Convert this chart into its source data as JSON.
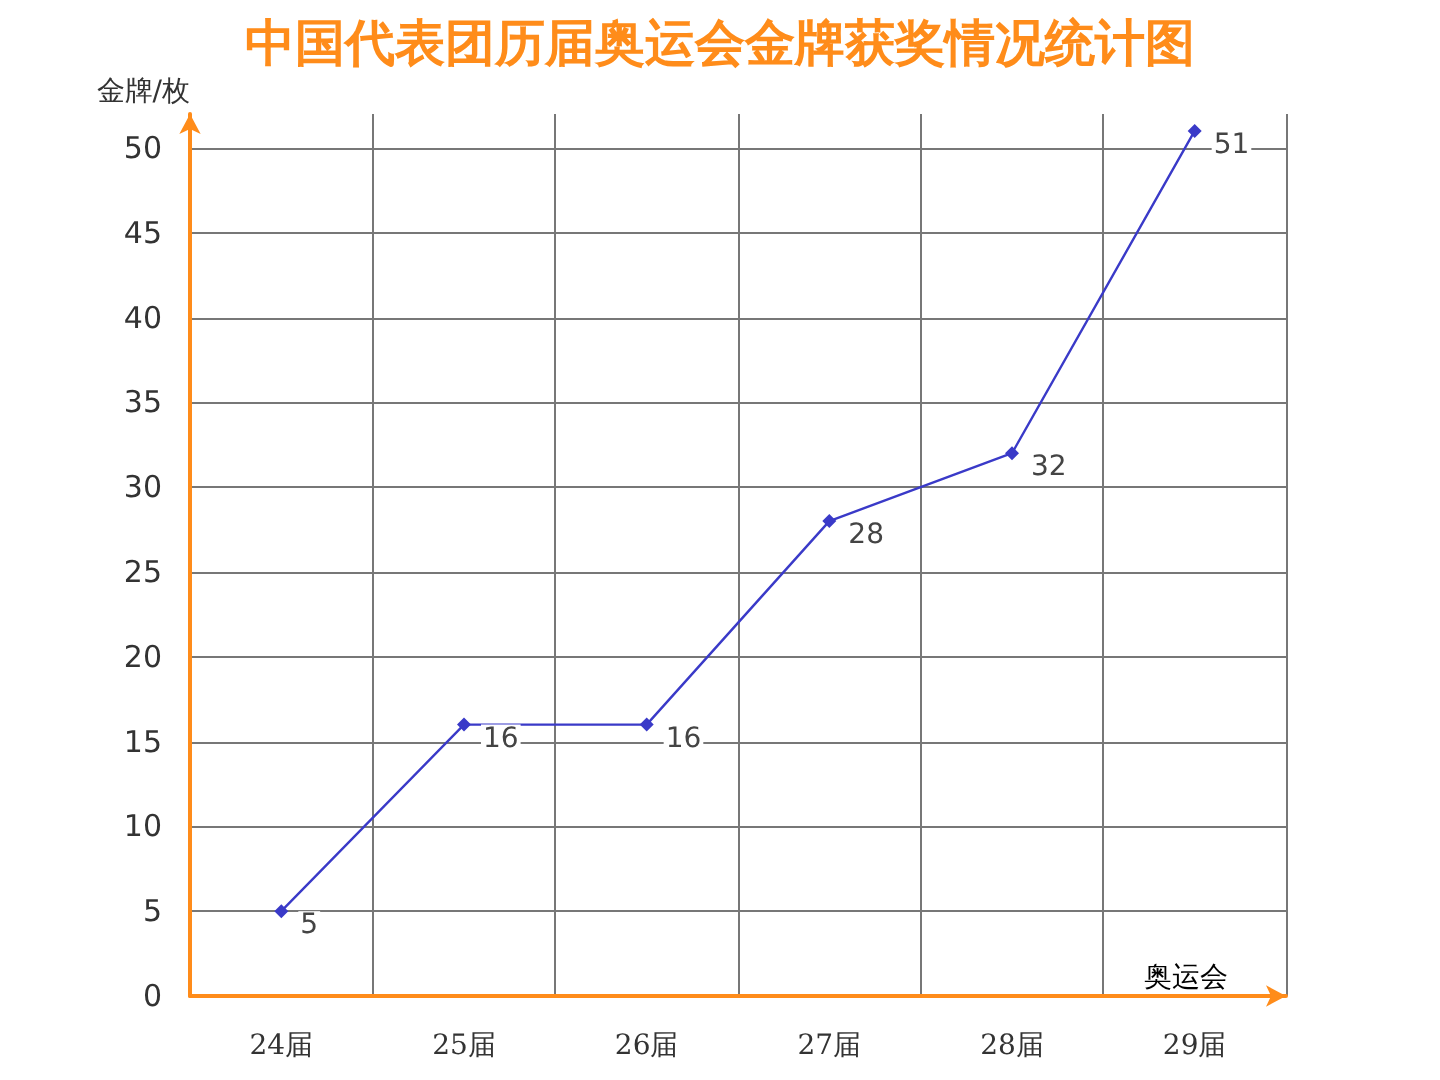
{
  "chart_data": {
    "type": "line",
    "title": "中国代表团历届奥运会金牌获奖情况统计图",
    "xlabel": "奥运会",
    "ylabel": "金牌/枚",
    "categories": [
      "24届",
      "25届",
      "26届",
      "27届",
      "28届",
      "29届"
    ],
    "series": [
      {
        "color": "#3a3ac8",
        "values": [
          5,
          16,
          16,
          28,
          32,
          51
        ]
      }
    ],
    "ylim": [
      0,
      52
    ],
    "yticks": [
      0,
      5,
      10,
      15,
      20,
      25,
      30,
      35,
      40,
      45,
      50
    ],
    "grid": true,
    "marker": "diamond",
    "line_style": "solid",
    "data_labels": true
  }
}
